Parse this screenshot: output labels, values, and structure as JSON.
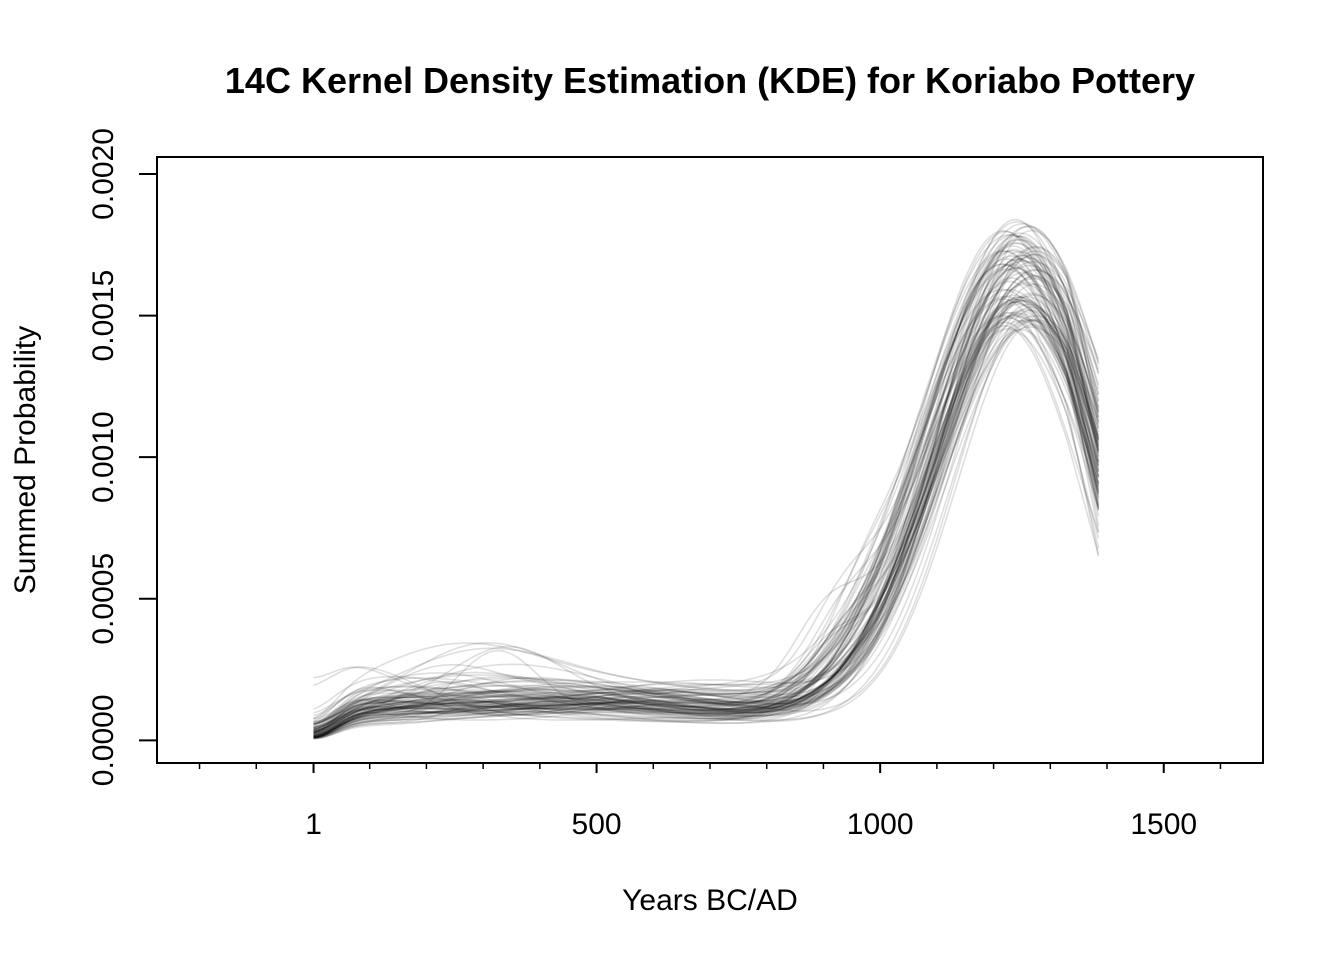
{
  "chart_data": {
    "type": "line",
    "title": "14C Kernel Density Estimation (KDE) for Koriabo Pottery",
    "xlabel": "Years BC/AD",
    "ylabel": "Summed Probability",
    "xlim": [
      -275,
      1675
    ],
    "ylim": [
      -8e-05,
      0.00206
    ],
    "x_ticks": [
      1,
      500,
      1000,
      1500
    ],
    "x_tick_labels": [
      "1",
      "500",
      "1000",
      "1500"
    ],
    "x_minor_ticks": [
      -200,
      -100,
      100,
      200,
      300,
      400,
      600,
      700,
      800,
      900,
      1100,
      1200,
      1300,
      1400,
      1600
    ],
    "y_ticks": [
      0.0,
      0.0005,
      0.001,
      0.0015,
      0.002
    ],
    "y_tick_labels": [
      "0.0000",
      "0.0005",
      "0.0010",
      "0.0015",
      "0.0020"
    ],
    "line_color": "#000000",
    "line_opacity": 0.13,
    "grid": false,
    "legend": "none",
    "x_range": [
      1,
      1385
    ],
    "series_count": 100,
    "series_description_values": {
      "median_curve": {
        "x": [
          1,
          100,
          200,
          300,
          400,
          500,
          600,
          700,
          750,
          800,
          850,
          900,
          950,
          1000,
          1050,
          1100,
          1150,
          1200,
          1240,
          1270,
          1300,
          1330,
          1360,
          1385
        ],
        "y": [
          6e-05,
          7e-05,
          8e-05,
          8e-05,
          8e-05,
          8e-05,
          9e-05,
          0.0001,
          0.00011,
          0.00014,
          0.0002,
          0.0003,
          0.00046,
          0.00066,
          0.00088,
          0.0011,
          0.00131,
          0.00148,
          0.00156,
          0.00155,
          0.00146,
          0.00128,
          0.00106,
          0.00094
        ]
      }
    }
  }
}
